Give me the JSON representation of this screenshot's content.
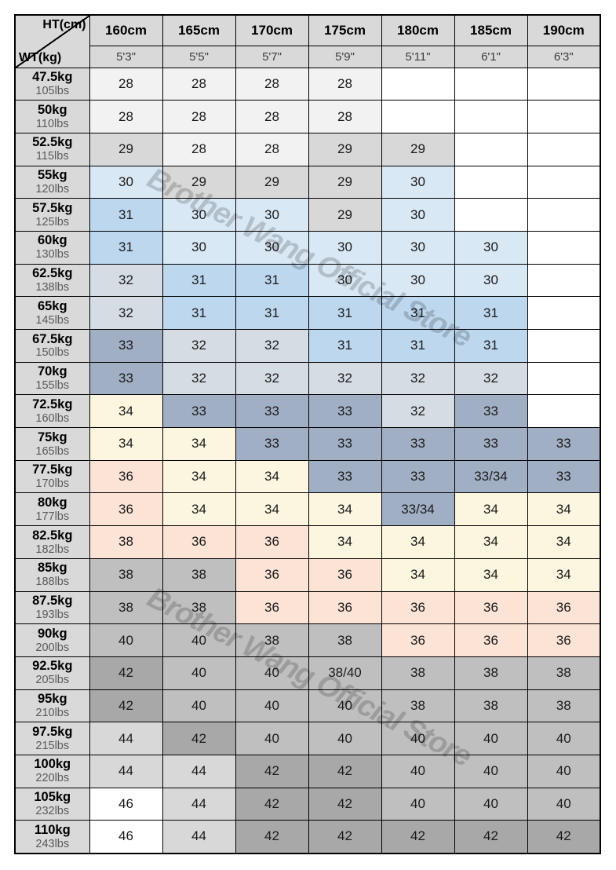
{
  "watermark": {
    "text": "Brother Wang Official Store",
    "color": "rgba(0,0,0,0.18)"
  },
  "chart_data": {
    "type": "table",
    "corner": {
      "top_label": "HT(cm)",
      "bottom_label": "WT(kg)"
    },
    "columns": [
      {
        "cm": "160cm",
        "ft": "5'3\""
      },
      {
        "cm": "165cm",
        "ft": "5'5\""
      },
      {
        "cm": "170cm",
        "ft": "5'7\""
      },
      {
        "cm": "175cm",
        "ft": "5'9\""
      },
      {
        "cm": "180cm",
        "ft": "5'11\""
      },
      {
        "cm": "185cm",
        "ft": "6'1\""
      },
      {
        "cm": "190cm",
        "ft": "6'3\""
      }
    ],
    "palette": {
      "w": "#ffffff",
      "g1": "#f2f2f2",
      "g2": "#d8d8d8",
      "g3": "#bfbfbf",
      "g4": "#a8a8a8",
      "b1": "#d9e8f5",
      "b2": "#bdd7ee",
      "s1": "#d6dce4",
      "s2": "#a1afc4",
      "cr": "#fcf5df",
      "pk": "#fbe3d6"
    },
    "rows": [
      {
        "kg": "47.5kg",
        "lbs": "105lbs",
        "cells": [
          {
            "v": "28",
            "c": "g1"
          },
          {
            "v": "28",
            "c": "g1"
          },
          {
            "v": "28",
            "c": "g1"
          },
          {
            "v": "28",
            "c": "g1"
          },
          {
            "v": "",
            "c": "w"
          },
          {
            "v": "",
            "c": "w"
          },
          {
            "v": "",
            "c": "w"
          }
        ]
      },
      {
        "kg": "50kg",
        "lbs": "110lbs",
        "cells": [
          {
            "v": "28",
            "c": "g1"
          },
          {
            "v": "28",
            "c": "g1"
          },
          {
            "v": "28",
            "c": "g1"
          },
          {
            "v": "28",
            "c": "g1"
          },
          {
            "v": "",
            "c": "w"
          },
          {
            "v": "",
            "c": "w"
          },
          {
            "v": "",
            "c": "w"
          }
        ]
      },
      {
        "kg": "52.5kg",
        "lbs": "115lbs",
        "cells": [
          {
            "v": "29",
            "c": "g2"
          },
          {
            "v": "28",
            "c": "g1"
          },
          {
            "v": "28",
            "c": "g1"
          },
          {
            "v": "29",
            "c": "g2"
          },
          {
            "v": "29",
            "c": "g2"
          },
          {
            "v": "",
            "c": "w"
          },
          {
            "v": "",
            "c": "w"
          }
        ]
      },
      {
        "kg": "55kg",
        "lbs": "120lbs",
        "cells": [
          {
            "v": "30",
            "c": "b1"
          },
          {
            "v": "29",
            "c": "g2"
          },
          {
            "v": "29",
            "c": "g2"
          },
          {
            "v": "29",
            "c": "g2"
          },
          {
            "v": "30",
            "c": "b1"
          },
          {
            "v": "",
            "c": "w"
          },
          {
            "v": "",
            "c": "w"
          }
        ]
      },
      {
        "kg": "57.5kg",
        "lbs": "125lbs",
        "cells": [
          {
            "v": "31",
            "c": "b2"
          },
          {
            "v": "30",
            "c": "b1"
          },
          {
            "v": "30",
            "c": "b1"
          },
          {
            "v": "29",
            "c": "g2"
          },
          {
            "v": "30",
            "c": "b1"
          },
          {
            "v": "",
            "c": "w"
          },
          {
            "v": "",
            "c": "w"
          }
        ]
      },
      {
        "kg": "60kg",
        "lbs": "130lbs",
        "cells": [
          {
            "v": "31",
            "c": "b2"
          },
          {
            "v": "30",
            "c": "b1"
          },
          {
            "v": "30",
            "c": "b1"
          },
          {
            "v": "30",
            "c": "b1"
          },
          {
            "v": "30",
            "c": "b1"
          },
          {
            "v": "30",
            "c": "b1"
          },
          {
            "v": "",
            "c": "w"
          }
        ]
      },
      {
        "kg": "62.5kg",
        "lbs": "138lbs",
        "cells": [
          {
            "v": "32",
            "c": "s1"
          },
          {
            "v": "31",
            "c": "b2"
          },
          {
            "v": "31",
            "c": "b2"
          },
          {
            "v": "30",
            "c": "b1"
          },
          {
            "v": "30",
            "c": "b1"
          },
          {
            "v": "30",
            "c": "b1"
          },
          {
            "v": "",
            "c": "w"
          }
        ]
      },
      {
        "kg": "65kg",
        "lbs": "145lbs",
        "cells": [
          {
            "v": "32",
            "c": "s1"
          },
          {
            "v": "31",
            "c": "b2"
          },
          {
            "v": "31",
            "c": "b2"
          },
          {
            "v": "31",
            "c": "b2"
          },
          {
            "v": "31",
            "c": "b2"
          },
          {
            "v": "31",
            "c": "b2"
          },
          {
            "v": "",
            "c": "w"
          }
        ]
      },
      {
        "kg": "67.5kg",
        "lbs": "150lbs",
        "cells": [
          {
            "v": "33",
            "c": "s2"
          },
          {
            "v": "32",
            "c": "s1"
          },
          {
            "v": "32",
            "c": "s1"
          },
          {
            "v": "31",
            "c": "b2"
          },
          {
            "v": "31",
            "c": "b2"
          },
          {
            "v": "31",
            "c": "b2"
          },
          {
            "v": "",
            "c": "w"
          }
        ]
      },
      {
        "kg": "70kg",
        "lbs": "155lbs",
        "cells": [
          {
            "v": "33",
            "c": "s2"
          },
          {
            "v": "32",
            "c": "s1"
          },
          {
            "v": "32",
            "c": "s1"
          },
          {
            "v": "32",
            "c": "s1"
          },
          {
            "v": "32",
            "c": "s1"
          },
          {
            "v": "32",
            "c": "s1"
          },
          {
            "v": "",
            "c": "w"
          }
        ]
      },
      {
        "kg": "72.5kg",
        "lbs": "160lbs",
        "cells": [
          {
            "v": "34",
            "c": "cr"
          },
          {
            "v": "33",
            "c": "s2"
          },
          {
            "v": "33",
            "c": "s2"
          },
          {
            "v": "33",
            "c": "s2"
          },
          {
            "v": "32",
            "c": "s1"
          },
          {
            "v": "33",
            "c": "s2"
          },
          {
            "v": "",
            "c": "w"
          }
        ]
      },
      {
        "kg": "75kg",
        "lbs": "165lbs",
        "cells": [
          {
            "v": "34",
            "c": "cr"
          },
          {
            "v": "34",
            "c": "cr"
          },
          {
            "v": "33",
            "c": "s2"
          },
          {
            "v": "33",
            "c": "s2"
          },
          {
            "v": "33",
            "c": "s2"
          },
          {
            "v": "33",
            "c": "s2"
          },
          {
            "v": "33",
            "c": "s2"
          }
        ]
      },
      {
        "kg": "77.5kg",
        "lbs": "170lbs",
        "cells": [
          {
            "v": "36",
            "c": "pk"
          },
          {
            "v": "34",
            "c": "cr"
          },
          {
            "v": "34",
            "c": "cr"
          },
          {
            "v": "33",
            "c": "s2"
          },
          {
            "v": "33",
            "c": "s2"
          },
          {
            "v": "33/34",
            "c": "s2"
          },
          {
            "v": "33",
            "c": "s2"
          }
        ]
      },
      {
        "kg": "80kg",
        "lbs": "177lbs",
        "cells": [
          {
            "v": "36",
            "c": "pk"
          },
          {
            "v": "34",
            "c": "cr"
          },
          {
            "v": "34",
            "c": "cr"
          },
          {
            "v": "34",
            "c": "cr"
          },
          {
            "v": "33/34",
            "c": "s2"
          },
          {
            "v": "34",
            "c": "cr"
          },
          {
            "v": "34",
            "c": "cr"
          }
        ]
      },
      {
        "kg": "82.5kg",
        "lbs": "182lbs",
        "cells": [
          {
            "v": "38",
            "c": "pk"
          },
          {
            "v": "36",
            "c": "pk"
          },
          {
            "v": "36",
            "c": "pk"
          },
          {
            "v": "34",
            "c": "cr"
          },
          {
            "v": "34",
            "c": "cr"
          },
          {
            "v": "34",
            "c": "cr"
          },
          {
            "v": "34",
            "c": "cr"
          }
        ]
      },
      {
        "kg": "85kg",
        "lbs": "188lbs",
        "cells": [
          {
            "v": "38",
            "c": "g3"
          },
          {
            "v": "38",
            "c": "g3"
          },
          {
            "v": "36",
            "c": "pk"
          },
          {
            "v": "36",
            "c": "pk"
          },
          {
            "v": "34",
            "c": "cr"
          },
          {
            "v": "34",
            "c": "cr"
          },
          {
            "v": "34",
            "c": "cr"
          }
        ]
      },
      {
        "kg": "87.5kg",
        "lbs": "193lbs",
        "cells": [
          {
            "v": "38",
            "c": "g3"
          },
          {
            "v": "38",
            "c": "g3"
          },
          {
            "v": "36",
            "c": "pk"
          },
          {
            "v": "36",
            "c": "pk"
          },
          {
            "v": "36",
            "c": "pk"
          },
          {
            "v": "36",
            "c": "pk"
          },
          {
            "v": "36",
            "c": "pk"
          }
        ]
      },
      {
        "kg": "90kg",
        "lbs": "200lbs",
        "cells": [
          {
            "v": "40",
            "c": "g3"
          },
          {
            "v": "40",
            "c": "g3"
          },
          {
            "v": "38",
            "c": "g3"
          },
          {
            "v": "38",
            "c": "g3"
          },
          {
            "v": "36",
            "c": "pk"
          },
          {
            "v": "36",
            "c": "pk"
          },
          {
            "v": "36",
            "c": "pk"
          }
        ]
      },
      {
        "kg": "92.5kg",
        "lbs": "205lbs",
        "cells": [
          {
            "v": "42",
            "c": "g4"
          },
          {
            "v": "40",
            "c": "g3"
          },
          {
            "v": "40",
            "c": "g3"
          },
          {
            "v": "38/40",
            "c": "g3"
          },
          {
            "v": "38",
            "c": "g3"
          },
          {
            "v": "38",
            "c": "g3"
          },
          {
            "v": "38",
            "c": "g3"
          }
        ]
      },
      {
        "kg": "95kg",
        "lbs": "210lbs",
        "cells": [
          {
            "v": "42",
            "c": "g4"
          },
          {
            "v": "40",
            "c": "g3"
          },
          {
            "v": "40",
            "c": "g3"
          },
          {
            "v": "40",
            "c": "g3"
          },
          {
            "v": "38",
            "c": "g3"
          },
          {
            "v": "38",
            "c": "g3"
          },
          {
            "v": "38",
            "c": "g3"
          }
        ]
      },
      {
        "kg": "97.5kg",
        "lbs": "215lbs",
        "cells": [
          {
            "v": "44",
            "c": "g2"
          },
          {
            "v": "42",
            "c": "g4"
          },
          {
            "v": "40",
            "c": "g3"
          },
          {
            "v": "40",
            "c": "g3"
          },
          {
            "v": "40",
            "c": "g3"
          },
          {
            "v": "40",
            "c": "g3"
          },
          {
            "v": "40",
            "c": "g3"
          }
        ]
      },
      {
        "kg": "100kg",
        "lbs": "220lbs",
        "cells": [
          {
            "v": "44",
            "c": "g2"
          },
          {
            "v": "44",
            "c": "g2"
          },
          {
            "v": "42",
            "c": "g4"
          },
          {
            "v": "42",
            "c": "g4"
          },
          {
            "v": "40",
            "c": "g3"
          },
          {
            "v": "40",
            "c": "g3"
          },
          {
            "v": "40",
            "c": "g3"
          }
        ]
      },
      {
        "kg": "105kg",
        "lbs": "232lbs",
        "cells": [
          {
            "v": "46",
            "c": "w"
          },
          {
            "v": "44",
            "c": "g2"
          },
          {
            "v": "42",
            "c": "g4"
          },
          {
            "v": "42",
            "c": "g4"
          },
          {
            "v": "40",
            "c": "g3"
          },
          {
            "v": "40",
            "c": "g3"
          },
          {
            "v": "40",
            "c": "g3"
          }
        ]
      },
      {
        "kg": "110kg",
        "lbs": "243lbs",
        "cells": [
          {
            "v": "46",
            "c": "w"
          },
          {
            "v": "44",
            "c": "g2"
          },
          {
            "v": "42",
            "c": "g4"
          },
          {
            "v": "42",
            "c": "g4"
          },
          {
            "v": "42",
            "c": "g4"
          },
          {
            "v": "42",
            "c": "g4"
          },
          {
            "v": "42",
            "c": "g4"
          }
        ]
      }
    ]
  }
}
